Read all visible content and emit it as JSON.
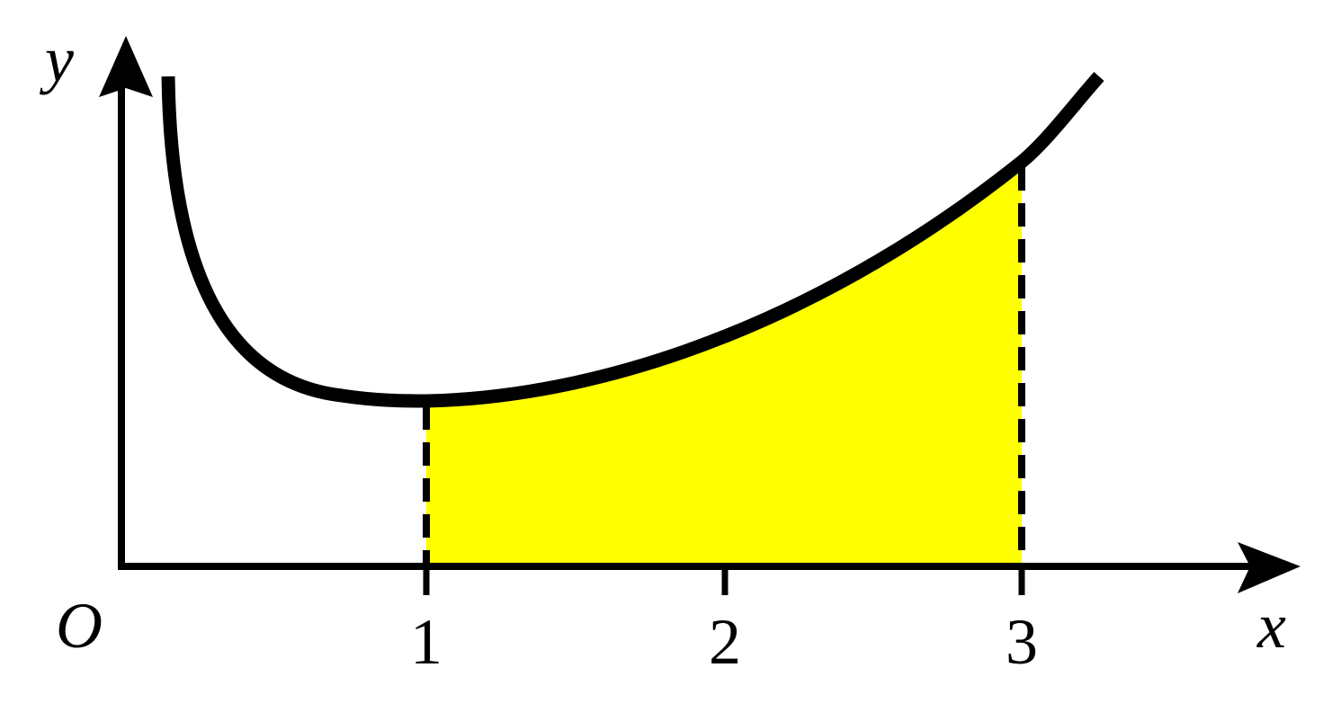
{
  "axes": {
    "x_label": "x",
    "y_label": "y",
    "origin_label": "O"
  },
  "ticks": [
    1,
    2,
    3
  ]
}
